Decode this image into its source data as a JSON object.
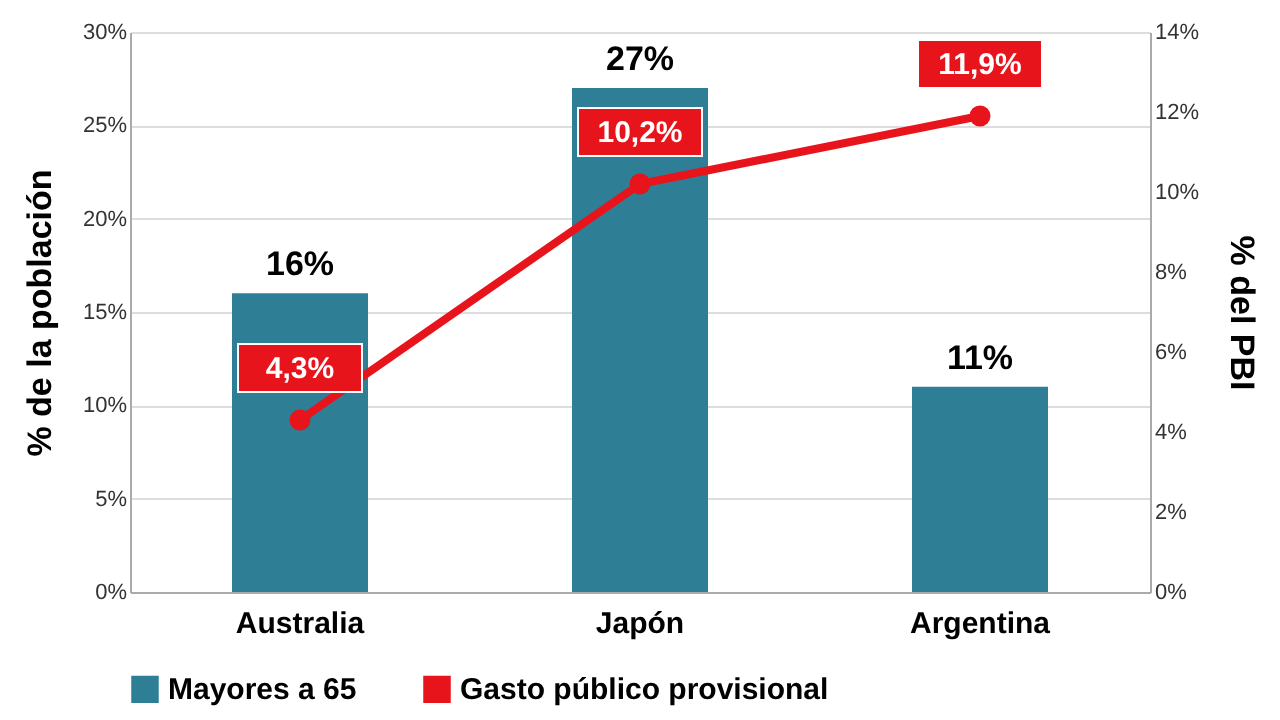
{
  "chart_data": {
    "type": "bar",
    "categories": [
      "Australia",
      "Japón",
      "Argentina"
    ],
    "ylabel": "% de la población",
    "y2label": "% del PBI",
    "ylim": [
      0,
      30
    ],
    "yticks": [
      {
        "value": 0,
        "label": "0%"
      },
      {
        "value": 5,
        "label": "5%"
      },
      {
        "value": 10,
        "label": "10%"
      },
      {
        "value": 15,
        "label": "15%"
      },
      {
        "value": 20,
        "label": "20%"
      },
      {
        "value": 25,
        "label": "25%"
      },
      {
        "value": 30,
        "label": "30%"
      }
    ],
    "y2lim": [
      0,
      14
    ],
    "y2ticks": [
      {
        "value": 0,
        "label": "0%"
      },
      {
        "value": 2,
        "label": "2%"
      },
      {
        "value": 4,
        "label": "4%"
      },
      {
        "value": 6,
        "label": "6%"
      },
      {
        "value": 8,
        "label": "8%"
      },
      {
        "value": 10,
        "label": "10%"
      },
      {
        "value": 12,
        "label": "12%"
      },
      {
        "value": 14,
        "label": "14%"
      }
    ],
    "grid": "y",
    "legend": "bottom",
    "marker": "circle",
    "series": [
      {
        "name": "Mayores a 65",
        "color": "#2e7f95",
        "values": [
          16,
          27,
          11
        ],
        "value_labels": [
          "16%",
          "27%",
          "11%"
        ]
      },
      {
        "name": "Gasto público provisional",
        "type": "line",
        "axis": "y2",
        "color": "#e8141c",
        "values": [
          4.3,
          10.2,
          11.9
        ],
        "value_labels": [
          "4,3%",
          "10,2%",
          "11,9%"
        ]
      }
    ]
  }
}
